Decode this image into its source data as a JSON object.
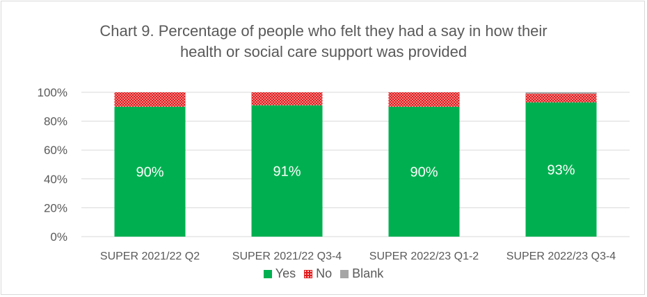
{
  "chart_data": {
    "type": "bar",
    "stacked": true,
    "title": "Chart 9. Percentage of people who felt they had a say in how their health or social care support was provided",
    "title_lines": [
      "Chart 9. Percentage of people who felt they had a say in how their",
      "health or social care support was provided"
    ],
    "categories": [
      "SUPER 2021/22 Q2",
      "SUPER 2021/22 Q3-4",
      "SUPER 2022/23 Q1-2",
      "SUPER 2022/23 Q3-4"
    ],
    "series": [
      {
        "name": "Yes",
        "color": "#00b050",
        "values": [
          90,
          91,
          90,
          93
        ],
        "labels": [
          "90%",
          "91%",
          "90%",
          "93%"
        ]
      },
      {
        "name": "No",
        "color": "#e31a1c",
        "pattern": "dotted",
        "values": [
          10,
          9,
          10,
          6
        ]
      },
      {
        "name": "Blank",
        "color": "#a5a5a5",
        "values": [
          0,
          0,
          0,
          1
        ]
      }
    ],
    "y_ticks": [
      "0%",
      "20%",
      "40%",
      "60%",
      "80%",
      "100%"
    ],
    "ylim": [
      0,
      100
    ],
    "grid": true,
    "legend_position": "bottom"
  }
}
